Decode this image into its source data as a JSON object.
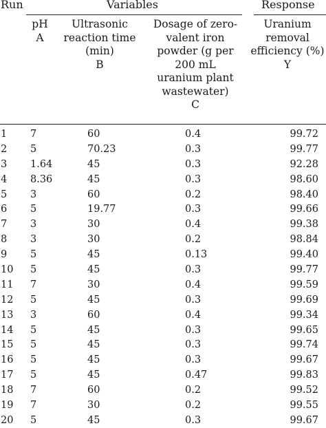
{
  "header": {
    "run": "Run",
    "variables": "Variables",
    "response": "Response"
  },
  "columns": {
    "a": [
      "pH",
      "A"
    ],
    "b": [
      "Ultrasonic",
      "reaction time",
      "(min)",
      "B"
    ],
    "c": [
      "Dosage of zero-",
      "valent iron",
      "powder (g per",
      "200 mL",
      "uranium plant",
      "wastewater)",
      "C"
    ],
    "y": [
      "Uranium",
      "removal",
      "efficiency (%)",
      "Y"
    ]
  },
  "rows": [
    {
      "run": "1",
      "a": "7",
      "b": "60",
      "c": "0.4",
      "y": "99.72"
    },
    {
      "run": "2",
      "a": "5",
      "b": "70.23",
      "c": "0.3",
      "y": "99.77"
    },
    {
      "run": "3",
      "a": "1.64",
      "b": "45",
      "c": "0.3",
      "y": "92.28"
    },
    {
      "run": "4",
      "a": "8.36",
      "b": "45",
      "c": "0.3",
      "y": "98.60"
    },
    {
      "run": "5",
      "a": "3",
      "b": "60",
      "c": "0.2",
      "y": "98.40"
    },
    {
      "run": "6",
      "a": "5",
      "b": "19.77",
      "c": "0.3",
      "y": "99.66"
    },
    {
      "run": "7",
      "a": "3",
      "b": "30",
      "c": "0.4",
      "y": "99.38"
    },
    {
      "run": "8",
      "a": "3",
      "b": "30",
      "c": "0.2",
      "y": "98.84"
    },
    {
      "run": "9",
      "a": "5",
      "b": "45",
      "c": "0.13",
      "y": "99.40"
    },
    {
      "run": "10",
      "a": "5",
      "b": "45",
      "c": "0.3",
      "y": "99.77"
    },
    {
      "run": "11",
      "a": "7",
      "b": "30",
      "c": "0.4",
      "y": "99.59"
    },
    {
      "run": "12",
      "a": "5",
      "b": "45",
      "c": "0.3",
      "y": "99.69"
    },
    {
      "run": "13",
      "a": "3",
      "b": "60",
      "c": "0.4",
      "y": "99.34"
    },
    {
      "run": "14",
      "a": "5",
      "b": "45",
      "c": "0.3",
      "y": "99.65"
    },
    {
      "run": "15",
      "a": "5",
      "b": "45",
      "c": "0.3",
      "y": "99.74"
    },
    {
      "run": "16",
      "a": "5",
      "b": "45",
      "c": "0.3",
      "y": "99.67"
    },
    {
      "run": "17",
      "a": "5",
      "b": "45",
      "c": "0.47",
      "y": "99.83"
    },
    {
      "run": "18",
      "a": "7",
      "b": "60",
      "c": "0.2",
      "y": "99.52"
    },
    {
      "run": "19",
      "a": "7",
      "b": "30",
      "c": "0.2",
      "y": "99.55"
    },
    {
      "run": "20",
      "a": "5",
      "b": "45",
      "c": "0.3",
      "y": "99.67"
    }
  ]
}
